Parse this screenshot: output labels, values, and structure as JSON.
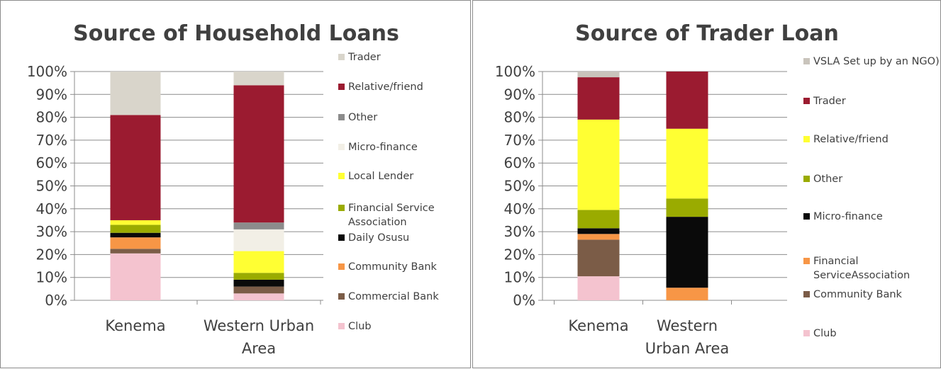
{
  "chart_data": [
    {
      "type": "bar",
      "stacked": true,
      "title": "Source of Household Loans",
      "categories": [
        "Kenema",
        "Western Urban Area"
      ],
      "category_lines": [
        [
          "Kenema"
        ],
        [
          "Western Urban",
          "Area"
        ]
      ],
      "ylim": [
        0,
        100
      ],
      "yticks": [
        "0%",
        "10%",
        "20%",
        "30%",
        "40%",
        "50%",
        "60%",
        "70%",
        "80%",
        "90%",
        "100%"
      ],
      "grid": true,
      "legend_position": "right",
      "series": [
        {
          "name": "Club",
          "values": [
            20.5,
            3
          ],
          "color": "#f4c3cf"
        },
        {
          "name": "Commercial Bank",
          "values": [
            2,
            3
          ],
          "color": "#7b5c47"
        },
        {
          "name": "Community Bank",
          "values": [
            5,
            0
          ],
          "color": "#f79646"
        },
        {
          "name": "Daily Osusu",
          "values": [
            2,
            3
          ],
          "color": "#0a0a0a"
        },
        {
          "name": "Financial Service\nAssociation",
          "values": [
            3.5,
            3
          ],
          "color": "#9aab00"
        },
        {
          "name": "Local Lender",
          "values": [
            2,
            9.5
          ],
          "color": "#ffff33"
        },
        {
          "name": "Micro-finance",
          "values": [
            0,
            9.5
          ],
          "color": "#f2efe6"
        },
        {
          "name": "Other",
          "values": [
            0,
            3
          ],
          "color": "#8c8c8c"
        },
        {
          "name": "Relative/friend",
          "values": [
            46,
            60
          ],
          "color": "#9b1b30"
        },
        {
          "name": "Trader",
          "values": [
            19,
            6
          ],
          "color": "#d9d5cb"
        }
      ]
    },
    {
      "type": "bar",
      "stacked": true,
      "title": "Source of Trader Loan",
      "categories": [
        "Kenema",
        "Western Urban Area"
      ],
      "category_lines": [
        [
          "Kenema"
        ],
        [
          "Western",
          "Urban Area"
        ]
      ],
      "ylim": [
        0,
        100
      ],
      "yticks": [
        "0%",
        "10%",
        "20%",
        "30%",
        "40%",
        "50%",
        "60%",
        "70%",
        "80%",
        "90%",
        "100%"
      ],
      "grid": true,
      "legend_position": "right",
      "series": [
        {
          "name": "Club",
          "values": [
            10.5,
            0
          ],
          "color": "#f4c3cf"
        },
        {
          "name": "Community Bank",
          "values": [
            16,
            0
          ],
          "color": "#7b5c47"
        },
        {
          "name": "Financial\nServiceAssociation",
          "values": [
            2.5,
            5.5
          ],
          "color": "#f79646"
        },
        {
          "name": "Micro-finance",
          "values": [
            2.5,
            31
          ],
          "color": "#0a0a0a"
        },
        {
          "name": "Other",
          "values": [
            8,
            8
          ],
          "color": "#9aab00"
        },
        {
          "name": "Relative/friend",
          "values": [
            39.5,
            30.5
          ],
          "color": "#ffff33"
        },
        {
          "name": "Trader",
          "values": [
            18.5,
            25
          ],
          "color": "#9b1b30"
        },
        {
          "name": "VSLA Set up by an NGO)",
          "values": [
            2.5,
            0
          ],
          "color": "#c9c4bc"
        }
      ]
    }
  ]
}
